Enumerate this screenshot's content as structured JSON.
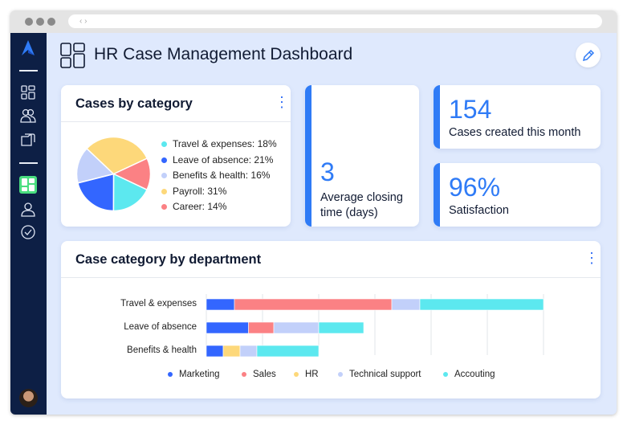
{
  "window": {
    "url_nav": "‹ ›"
  },
  "sidebar": {
    "items": [
      {
        "icon": "dashboard-icon"
      },
      {
        "icon": "users-icon"
      },
      {
        "icon": "folders-icon"
      },
      {
        "icon": "active-dashboard-icon",
        "active": true
      },
      {
        "icon": "user-icon"
      },
      {
        "icon": "check-circle-icon"
      }
    ],
    "active_color": "#4ade80"
  },
  "header": {
    "title": "HR Case Management Dashboard",
    "edit_icon": "pencil-icon"
  },
  "pie_card": {
    "title": "Cases by category",
    "legend": [
      {
        "label": "Travel & expenses: 18%",
        "value": 18,
        "color": "#5ce8ef"
      },
      {
        "label": "Leave of absence: 21%",
        "value": 21,
        "color": "#3366ff"
      },
      {
        "label": "Benefits & health: 16%",
        "value": 16,
        "color": "#c2d0fa"
      },
      {
        "label": "Payroll: 31%",
        "value": 31,
        "color": "#fdd87a"
      },
      {
        "label": "Career: 14%",
        "value": 14,
        "color": "#fb8184"
      }
    ]
  },
  "stats": {
    "closing": {
      "value": "3",
      "label": "Average closing time (days)"
    },
    "created": {
      "value": "154",
      "label": "Cases created this month"
    },
    "satisfaction": {
      "value": "96%",
      "label": "Satisfaction"
    }
  },
  "chart_data": {
    "type": "bar",
    "orientation": "horizontal",
    "stacked": true,
    "title": "Case category by department",
    "categories": [
      "Travel & expenses",
      "Leave of absence",
      "Benefits & health"
    ],
    "xlim": [
      0,
      60
    ],
    "grid": true,
    "legend_position": "bottom",
    "series": [
      {
        "name": "Marketing",
        "color": "#3366ff",
        "values": [
          5,
          7.5,
          3
        ]
      },
      {
        "name": "Sales",
        "color": "#fb8184",
        "values": [
          28,
          4.5,
          0
        ]
      },
      {
        "name": "HR",
        "color": "#fdd87a",
        "values": [
          0,
          0,
          3
        ]
      },
      {
        "name": "Technical support",
        "color": "#c2d0fa",
        "values": [
          5,
          8,
          3
        ]
      },
      {
        "name": "Accouting",
        "color": "#5ce8ef",
        "values": [
          22,
          8,
          11
        ]
      }
    ]
  }
}
